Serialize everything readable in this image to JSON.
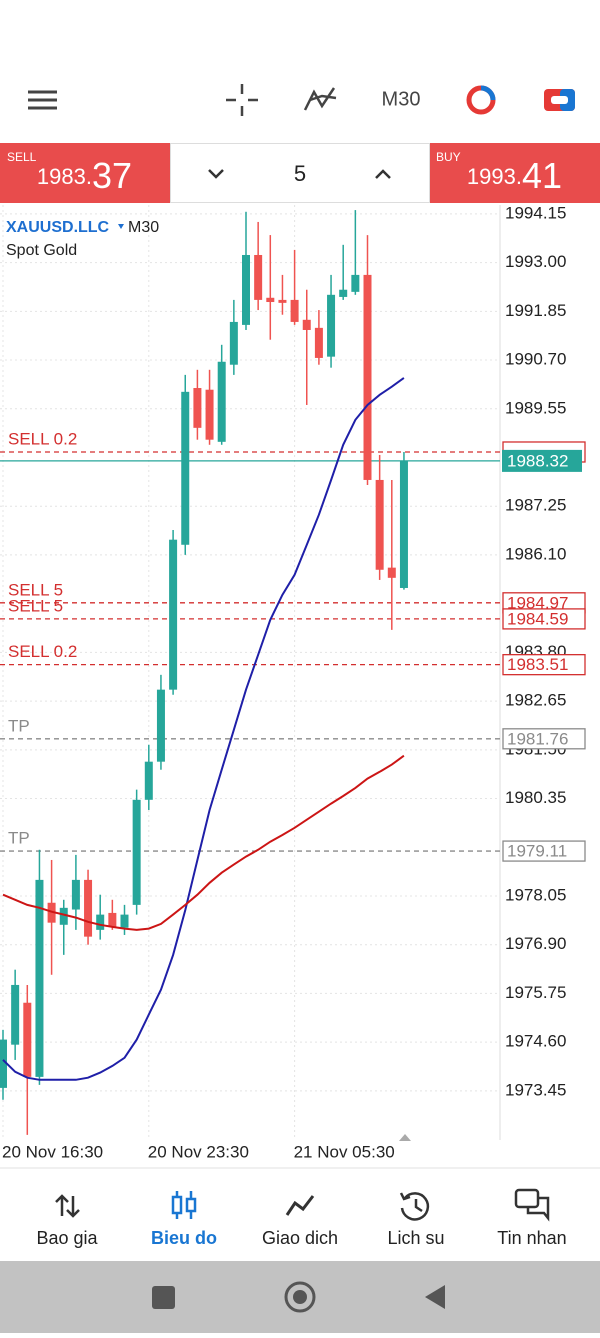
{
  "toolbar": {
    "timeframe": "M30"
  },
  "trade_panel": {
    "sell": {
      "label": "SELL",
      "price_head": "1983.",
      "price_tail": "37"
    },
    "volume": "5",
    "buy": {
      "label": "BUY",
      "price_head": "1993.",
      "price_tail": "41"
    }
  },
  "chart_data": {
    "type": "candlestick",
    "symbol": "XAUUSD.LLC",
    "timeframe": "M30",
    "description": "Spot Gold",
    "categories": [
      "20 Nov 16:30",
      null,
      null,
      null,
      null,
      null,
      null,
      null,
      null,
      null,
      null,
      null,
      "20 Nov 23:30",
      null,
      null,
      null,
      null,
      null,
      null,
      null,
      null,
      null,
      null,
      null,
      "21 Nov 05:30",
      null,
      null,
      null,
      null,
      null,
      null,
      null,
      null,
      null
    ],
    "open": [
      1973.52,
      1974.54,
      1975.53,
      1973.78,
      1977.89,
      1977.37,
      1977.73,
      1978.43,
      1977.25,
      1977.65,
      1977.3,
      1977.84,
      1980.32,
      1981.22,
      1982.92,
      1986.34,
      1990.04,
      1990.0,
      1988.77,
      1990.59,
      1991.53,
      1993.18,
      1992.17,
      1992.12,
      1992.12,
      1991.65,
      1991.46,
      1990.78,
      1992.19,
      1992.31,
      1992.71,
      1987.87,
      1985.8,
      1985.32
    ],
    "high": [
      1974.89,
      1976.31,
      1975.95,
      1979.14,
      1978.9,
      1977.96,
      1979.02,
      1978.67,
      1978.08,
      1977.96,
      1977.84,
      1980.56,
      1981.62,
      1983.27,
      1986.69,
      1990.35,
      1990.47,
      1990.47,
      1991.06,
      1992.12,
      1994.2,
      1993.96,
      1993.65,
      1992.71,
      1993.3,
      1992.36,
      1991.88,
      1992.71,
      1993.42,
      1994.24,
      1993.65,
      1988.46,
      1987.87,
      1988.53
    ],
    "low": [
      1973.24,
      1974.18,
      1972.41,
      1973.59,
      1976.19,
      1976.66,
      1977.25,
      1976.9,
      1977.02,
      1977.25,
      1977.13,
      1977.61,
      1980.08,
      1981.03,
      1982.8,
      1986.1,
      1988.82,
      1988.7,
      1988.7,
      1990.35,
      1991.41,
      1991.88,
      1991.18,
      1991.77,
      1991.53,
      1989.64,
      1990.59,
      1990.52,
      1992.12,
      1992.24,
      1987.75,
      1985.51,
      1984.33,
      1985.28
    ],
    "close": [
      1974.66,
      1975.95,
      1973.78,
      1978.43,
      1977.42,
      1977.77,
      1978.43,
      1977.09,
      1977.61,
      1977.32,
      1977.61,
      1980.32,
      1981.22,
      1982.92,
      1986.46,
      1989.95,
      1989.1,
      1988.82,
      1990.66,
      1991.6,
      1993.18,
      1992.12,
      1992.07,
      1992.05,
      1991.6,
      1991.41,
      1990.75,
      1992.24,
      1992.36,
      1992.71,
      1987.87,
      1985.75,
      1985.56,
      1988.32
    ],
    "up_color": "#26a69a",
    "down_color": "#ef5350",
    "ylim": [
      1972.29,
      1994.36
    ],
    "yticks": [
      1994.15,
      {
        "value": 1993,
        "label": "1993.00"
      },
      1991.85,
      {
        "value": 1990.7,
        "label": "1990.70"
      },
      1989.55,
      1987.25,
      {
        "value": 1986.1,
        "label": "1986.10"
      },
      {
        "value": 1983.8,
        "label": "1983.80"
      },
      1982.65,
      {
        "value": 1981.5,
        "label": "1981.50"
      },
      1980.35,
      1978.05,
      {
        "value": 1976.9,
        "label": "1976.90"
      },
      1975.75,
      {
        "value": 1974.6,
        "label": "1974.60"
      },
      1973.45
    ],
    "grid": true,
    "moving_averages": [
      {
        "color": "#1f1fa8",
        "values": [
          1974.18,
          1973.9,
          1973.76,
          1973.71,
          1973.71,
          1973.71,
          1973.71,
          1973.76,
          1973.88,
          1974.04,
          1974.23,
          1974.66,
          1975.25,
          1975.84,
          1976.66,
          1977.72,
          1978.9,
          1980.08,
          1981.03,
          1981.97,
          1982.92,
          1983.74,
          1984.57,
          1985.16,
          1985.63,
          1986.34,
          1987.05,
          1987.87,
          1988.7,
          1989.29,
          1989.64,
          1989.88,
          1990.07,
          1990.28
        ]
      },
      {
        "color": "#cc1515",
        "values": [
          1978.08,
          1977.96,
          1977.84,
          1977.77,
          1977.68,
          1977.61,
          1977.54,
          1977.44,
          1977.37,
          1977.32,
          1977.28,
          1977.25,
          1977.28,
          1977.39,
          1977.61,
          1977.84,
          1978.08,
          1978.36,
          1978.6,
          1978.79,
          1978.98,
          1979.14,
          1979.33,
          1979.49,
          1979.66,
          1979.85,
          1980.04,
          1980.23,
          1980.41,
          1980.6,
          1980.82,
          1980.98,
          1981.15,
          1981.36
        ]
      }
    ],
    "current_price": 1988.32,
    "current_color": "#26a69a",
    "levels": [
      {
        "label": "SELL 0.2",
        "value": 1988.53,
        "color": "#d32f2f",
        "boxed": false
      },
      {
        "label": "SELL 5",
        "value": 1984.97,
        "color": "#d32f2f",
        "boxed": true
      },
      {
        "label": "SELL 5",
        "value": 1984.59,
        "color": "#d32f2f",
        "boxed": true
      },
      {
        "label": "SELL 0.2",
        "value": 1983.51,
        "color": "#d32f2f",
        "boxed": true
      },
      {
        "label": "TP",
        "value": 1981.76,
        "color": "#8a8a8a",
        "boxed": true
      },
      {
        "label": "TP",
        "value": 1979.11,
        "color": "#8a8a8a",
        "boxed": true
      }
    ]
  },
  "bottom_nav": [
    "Bao gia",
    "Bieu do",
    "Giao dich",
    "Lich su",
    "Tin nhan"
  ]
}
